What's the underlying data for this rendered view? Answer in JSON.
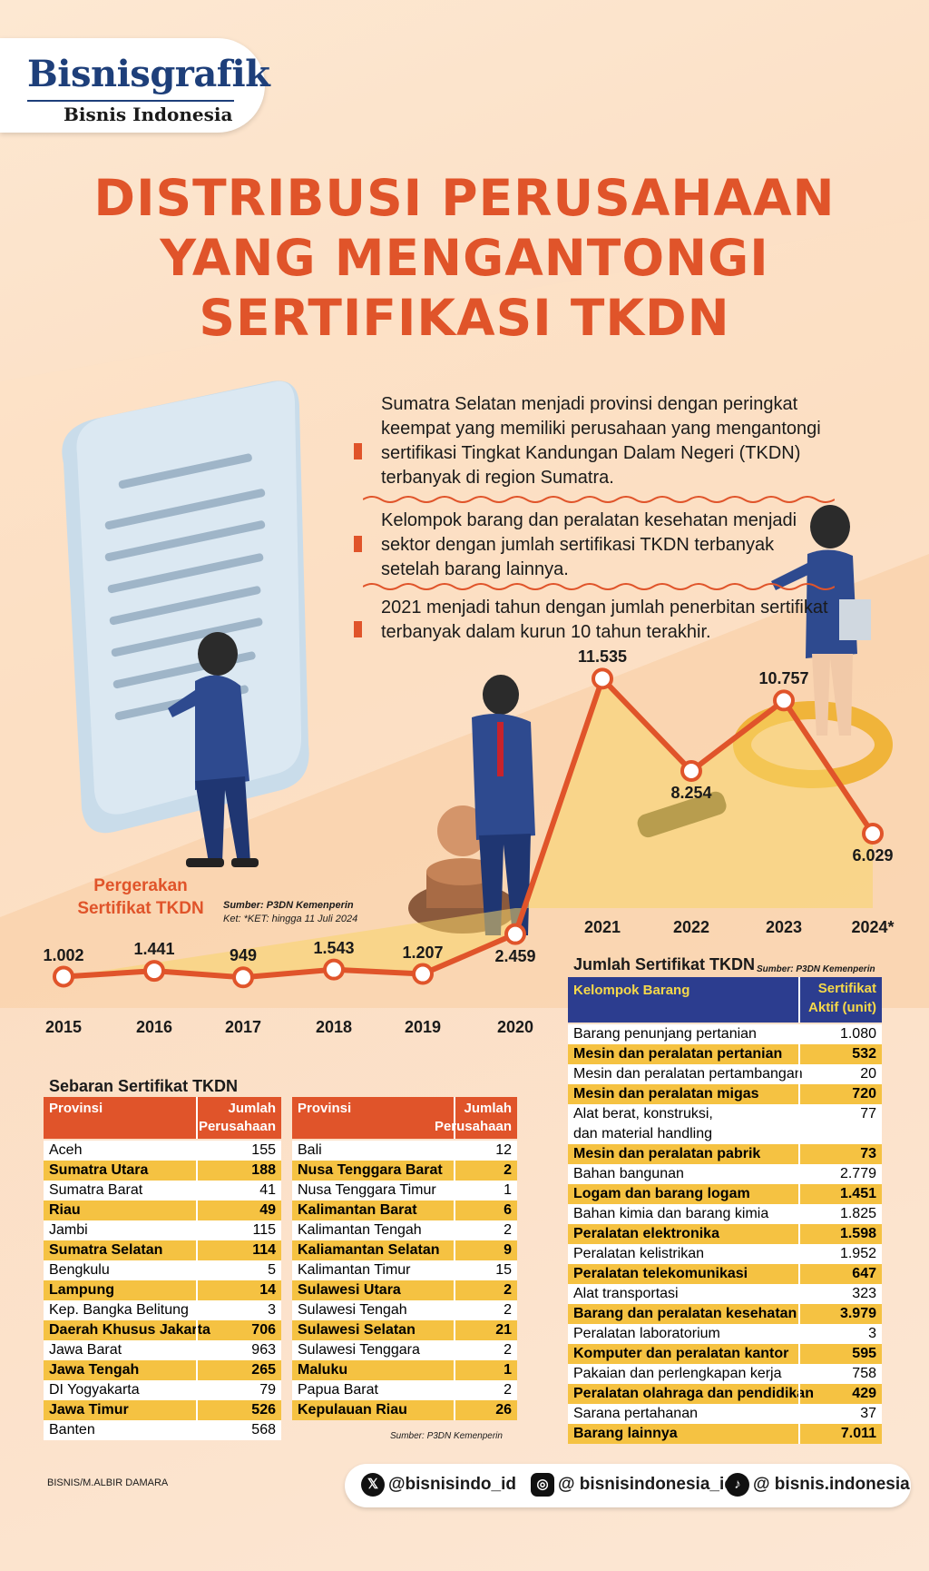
{
  "logo": {
    "main": "Bisnisgrafik",
    "sub": "Bisnis Indonesia"
  },
  "title": [
    "DISTRIBUSI PERUSAHAAN",
    "YANG MENGANTONGI",
    "SERTIFIKASI TKDN"
  ],
  "bullets": [
    "Sumatra Selatan menjadi provinsi dengan peringkat keempat yang memiliki perusahaan yang mengantongi sertifikasi Tingkat Kandungan Dalam Negeri (TKDN) terbanyak di region Sumatra.",
    "Kelompok barang dan peralatan kesehatan menjadi sektor dengan jumlah sertifikasi TKDN terbanyak setelah barang lainnya.",
    "2021 menjadi tahun dengan jumlah penerbitan sertifikat terbanyak dalam kurun 10 tahun terakhir."
  ],
  "chart_data": {
    "type": "line",
    "title": "Pergerakan Sertifikat TKDN",
    "source": "Sumber: P3DN Kemenperin",
    "note": "Ket: *KET: hingga 11 Juli 2024",
    "x": [
      "2015",
      "2016",
      "2017",
      "2018",
      "2019",
      "2020",
      "2021",
      "2022",
      "2023",
      "2024*"
    ],
    "values": [
      1002,
      1441,
      949,
      1543,
      1207,
      2459,
      11535,
      8254,
      10757,
      6029
    ],
    "labels": [
      "1.002",
      "1.441",
      "949",
      "1.543",
      "1.207",
      "2.459",
      "11.535",
      "8.254",
      "10.757",
      "6.029"
    ]
  },
  "sebaran": {
    "title": "Sebaran Sertifikat TKDN",
    "col_provinsi": "Provinsi",
    "col_jumlah": [
      "Jumlah",
      "Perusahaan"
    ],
    "left": [
      [
        "Aceh",
        "155"
      ],
      [
        "Sumatra Utara",
        "188"
      ],
      [
        "Sumatra Barat",
        "41"
      ],
      [
        "Riau",
        "49"
      ],
      [
        "Jambi",
        "115"
      ],
      [
        "Sumatra Selatan",
        "114"
      ],
      [
        "Bengkulu",
        "5"
      ],
      [
        "Lampung",
        "14"
      ],
      [
        "Kep. Bangka Belitung",
        "3"
      ],
      [
        "Daerah Khusus Jakarta",
        "706"
      ],
      [
        "Jawa Barat",
        "963"
      ],
      [
        "Jawa Tengah",
        "265"
      ],
      [
        "DI Yogyakarta",
        "79"
      ],
      [
        "Jawa Timur",
        "526"
      ],
      [
        "Banten",
        "568"
      ]
    ],
    "right": [
      [
        "Bali",
        "12"
      ],
      [
        "Nusa Tenggara Barat",
        "2"
      ],
      [
        "Nusa Tenggara Timur",
        "1"
      ],
      [
        "Kalimantan Barat",
        "6"
      ],
      [
        "Kalimantan Tengah",
        "2"
      ],
      [
        "Kaliamantan Selatan",
        "9"
      ],
      [
        "Kalimantan Timur",
        "15"
      ],
      [
        "Sulawesi Utara",
        "2"
      ],
      [
        "Sulawesi Tengah",
        "2"
      ],
      [
        "Sulawesi Selatan",
        "21"
      ],
      [
        "Sulawesi Tenggara",
        "2"
      ],
      [
        "Maluku",
        "1"
      ],
      [
        "Papua Barat",
        "2"
      ],
      [
        "Kepulauan Riau",
        "26"
      ]
    ],
    "source": "Sumber: P3DN Kemenperin"
  },
  "jumlah": {
    "title": "Jumlah Sertifikat TKDN",
    "source": "Sumber: P3DN Kemenperin",
    "col_kelompok": "Kelompok Barang",
    "col_sertifikat": [
      "Sertifikat",
      "Aktif (unit)"
    ],
    "rows": [
      [
        "Barang penunjang pertanian",
        "1.080"
      ],
      [
        "Mesin dan peralatan pertanian",
        "532"
      ],
      [
        "Mesin dan peralatan pertambangan",
        "20"
      ],
      [
        "Mesin dan peralatan migas",
        "720"
      ],
      [
        "Alat berat, konstruksi,",
        "77"
      ],
      [
        "dan material handling",
        ""
      ],
      [
        "Mesin dan peralatan pabrik",
        "73"
      ],
      [
        "Bahan bangunan",
        "2.779"
      ],
      [
        "Logam dan barang logam",
        "1.451"
      ],
      [
        "Bahan kimia dan barang kimia",
        "1.825"
      ],
      [
        "Peralatan elektronika",
        "1.598"
      ],
      [
        "Peralatan kelistrikan",
        "1.952"
      ],
      [
        "Peralatan telekomunikasi",
        "647"
      ],
      [
        "Alat transportasi",
        "323"
      ],
      [
        "Barang dan peralatan kesehatan",
        "3.979"
      ],
      [
        "Peralatan laboratorium",
        "3"
      ],
      [
        "Komputer dan peralatan kantor",
        "595"
      ],
      [
        "Pakaian dan perlengkapan kerja",
        "758"
      ],
      [
        "Peralatan olahraga dan pendidikan",
        "429"
      ],
      [
        "Sarana pertahanan",
        "37"
      ],
      [
        "Barang lainnya",
        "7.011"
      ]
    ]
  },
  "footer": {
    "credit": "BISNIS/M.ALBIR DAMARA",
    "twitter": "@bisnisindo_id",
    "instagram": "@ bisnisindonesia_id",
    "tiktok": "@ bisnis.indonesia"
  },
  "colors": {
    "accent": "#e0542a",
    "navy": "#2c3d8f",
    "highlight": "#f5c242"
  }
}
